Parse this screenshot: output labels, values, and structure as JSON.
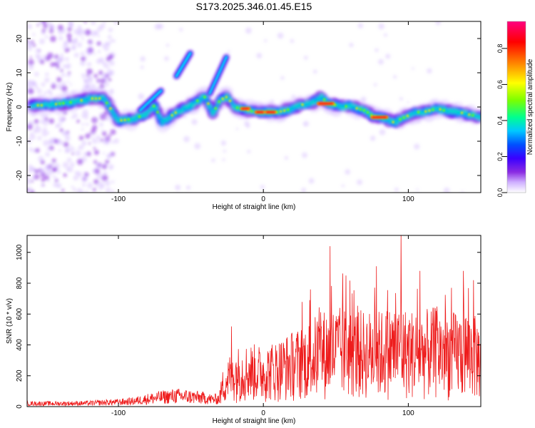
{
  "figure": {
    "title": "S173.2025.346.01.45.E15"
  },
  "chart_data": [
    {
      "type": "heatmap",
      "title": "S173.2025.346.01.45.E15",
      "xlabel": "Height of straight line (km)",
      "ylabel": "Frequency (Hz)",
      "xlim": [
        -163,
        150
      ],
      "ylim": [
        -25,
        25
      ],
      "x_ticks": [
        -100,
        0,
        100
      ],
      "y_ticks": [
        -20,
        -10,
        0,
        10,
        20
      ],
      "colorbar": {
        "label": "Normalized spectral amplitude",
        "range": [
          0,
          0.95
        ],
        "ticks": [
          0.0,
          0.2,
          0.4,
          0.6,
          0.8
        ],
        "colormap": [
          "#ffffff",
          "#cfb0ff",
          "#8a2be2",
          "#3a00ff",
          "#0050ff",
          "#00c8ff",
          "#00ff90",
          "#7cff00",
          "#ffff00",
          "#ff8000",
          "#ff0000",
          "#ff0080"
        ]
      },
      "ridge": {
        "x": [
          -160,
          -150,
          -140,
          -130,
          -120,
          -110,
          -100,
          -90,
          -80,
          -75,
          -70,
          -65,
          -60,
          -55,
          -50,
          -45,
          -40,
          -35,
          -30,
          -25,
          -20,
          -15,
          -10,
          -5,
          0,
          5,
          10,
          15,
          20,
          25,
          30,
          35,
          40,
          45,
          50,
          55,
          60,
          65,
          70,
          75,
          80,
          85,
          90,
          95,
          100,
          105,
          110,
          115,
          120,
          125,
          130,
          135,
          140,
          145,
          150
        ],
        "y": [
          0.5,
          0.5,
          1.0,
          1.5,
          2.5,
          2.5,
          -4.0,
          -3.5,
          -2.0,
          0.5,
          -4.5,
          -3.0,
          -1.5,
          -0.5,
          0.5,
          2.0,
          3.0,
          -2.0,
          2.0,
          3.0,
          0.0,
          -0.5,
          -1.0,
          -1.5,
          -1.5,
          -1.5,
          -1.5,
          -1.0,
          -0.5,
          0.5,
          1.0,
          1.5,
          3.0,
          1.0,
          0.5,
          0.0,
          0.5,
          -0.5,
          -1.0,
          -2.5,
          -3.0,
          -3.5,
          -4.5,
          -3.5,
          -2.5,
          -1.5,
          -1.5,
          -1.0,
          -0.5,
          -1.0,
          -1.5,
          -1.5,
          -2.0,
          -2.5,
          -3.0
        ]
      },
      "branches": [
        {
          "x": [
            -60,
            -50
          ],
          "y": [
            9,
            16
          ]
        },
        {
          "x": [
            -37,
            -25
          ],
          "y": [
            4,
            15
          ]
        },
        {
          "x": [
            -85,
            -70
          ],
          "y": [
            -1,
            5
          ]
        }
      ],
      "peak_segments": [
        {
          "x": [
            -15,
            -10
          ],
          "y": -0.5
        },
        {
          "x": [
            -5,
            0
          ],
          "y": -1.5
        },
        {
          "x": [
            2,
            8
          ],
          "y": -1.5
        },
        {
          "x": [
            38,
            48
          ],
          "y": 1.0
        },
        {
          "x": [
            75,
            85
          ],
          "y": -3.0
        }
      ]
    },
    {
      "type": "line",
      "xlabel": "Height of straight line (km)",
      "ylabel": "SNR (10 * v/v)",
      "xlim": [
        -163,
        150
      ],
      "ylim": [
        0,
        1110
      ],
      "x_ticks": [
        -100,
        0,
        100
      ],
      "y_ticks": [
        0,
        200,
        400,
        600,
        800,
        1000
      ],
      "color": "#ee1c1c",
      "envelope": {
        "x": [
          -163,
          -140,
          -120,
          -110,
          -100,
          -90,
          -80,
          -70,
          -60,
          -50,
          -40,
          -35,
          -30,
          -28,
          -25,
          -20,
          -15,
          -10,
          0,
          10,
          20,
          30,
          40,
          50,
          60,
          70,
          80,
          90,
          100,
          110,
          120,
          130,
          140,
          150
        ],
        "y": [
          35,
          35,
          38,
          45,
          50,
          60,
          85,
          105,
          120,
          110,
          95,
          80,
          90,
          180,
          240,
          290,
          300,
          310,
          300,
          330,
          370,
          410,
          470,
          490,
          480,
          470,
          470,
          500,
          480,
          470,
          490,
          460,
          480,
          420
        ]
      },
      "spikes": [
        {
          "x": -22,
          "y": 520
        },
        {
          "x": 32,
          "y": 690
        },
        {
          "x": 46,
          "y": 1040
        },
        {
          "x": 57,
          "y": 850
        },
        {
          "x": 78,
          "y": 910
        },
        {
          "x": 95,
          "y": 1110
        },
        {
          "x": 108,
          "y": 880
        },
        {
          "x": 138,
          "y": 880
        },
        {
          "x": 145,
          "y": 820
        }
      ]
    }
  ]
}
